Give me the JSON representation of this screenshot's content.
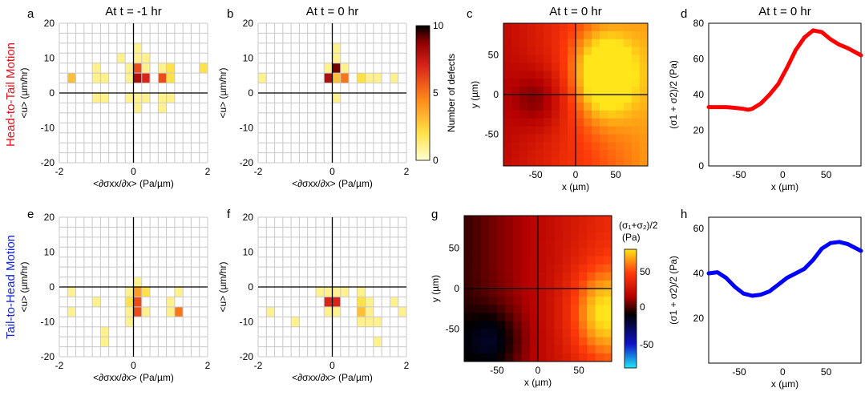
{
  "row_labels": {
    "top": {
      "text": "Head-to-Tail Motion",
      "color": "#e8101a"
    },
    "bottom": {
      "text": "Tail-to-Head Motion",
      "color": "#1426e6"
    }
  },
  "colors": {
    "defect_scale": [
      "#ffffd2",
      "#ffe24a",
      "#ff8a1a",
      "#d9241a",
      "#8a0000",
      "#000000"
    ],
    "stress_scale": [
      "#20e8f5",
      "#1014c8",
      "#000000",
      "#b40000",
      "#ff3a0a",
      "#ffe51a"
    ],
    "top_line": "#ff0000",
    "bottom_line": "#0000ff"
  },
  "colorbars": {
    "defects": {
      "label": "Number of defects",
      "ticks": [
        "0",
        "5",
        "10"
      ]
    },
    "stress": {
      "label_line1": "(σ₁+σ₂)/2",
      "label_line2": "(Pa)",
      "ticks": [
        "50",
        "0",
        "-50"
      ]
    }
  },
  "chart_data": [
    {
      "panel": "a",
      "type": "heatmap",
      "title": "At t = -1 hr",
      "xlabel": "<∂σxx/∂x>  (Pa/µm)",
      "ylabel": "<u> (µm/hr)",
      "xlim": [
        -2,
        2
      ],
      "ylim": [
        -20,
        20
      ],
      "xticks": [
        "-2",
        "0",
        "2"
      ],
      "yticks": [
        "20",
        "10",
        "0",
        "-10",
        "-20"
      ],
      "bin_width": 0.2222,
      "bin_height": 2.8571,
      "cells": [
        {
          "x": 0.0,
          "y": 11.5,
          "count": 1
        },
        {
          "x": -0.44,
          "y": 8.7,
          "count": 1
        },
        {
          "x": 0.22,
          "y": 8.7,
          "count": 1
        },
        {
          "x": 0.44,
          "y": 8.7,
          "count": 1
        },
        {
          "x": -1.11,
          "y": 5.8,
          "count": 1
        },
        {
          "x": -0.22,
          "y": 5.8,
          "count": 1
        },
        {
          "x": 0.0,
          "y": 5.8,
          "count": 1
        },
        {
          "x": 0.22,
          "y": 5.8,
          "count": 6
        },
        {
          "x": 0.44,
          "y": 5.8,
          "count": 1
        },
        {
          "x": 0.67,
          "y": 5.8,
          "count": 1
        },
        {
          "x": 1.11,
          "y": 5.8,
          "count": 2
        },
        {
          "x": 1.78,
          "y": 5.8,
          "count": 2
        },
        {
          "x": -1.56,
          "y": 2.9,
          "count": 3
        },
        {
          "x": -1.11,
          "y": 2.9,
          "count": 1
        },
        {
          "x": -0.67,
          "y": 2.9,
          "count": 1
        },
        {
          "x": -0.22,
          "y": 2.9,
          "count": 1
        },
        {
          "x": 0.0,
          "y": 2.9,
          "count": 2
        },
        {
          "x": 0.22,
          "y": 2.9,
          "count": 8
        },
        {
          "x": 0.44,
          "y": 2.9,
          "count": 7
        },
        {
          "x": 0.67,
          "y": 2.9,
          "count": 6
        },
        {
          "x": 1.11,
          "y": 2.9,
          "count": 2
        },
        {
          "x": -1.11,
          "y": -1.4,
          "count": 1
        },
        {
          "x": -0.67,
          "y": -1.4,
          "count": 1
        },
        {
          "x": -0.22,
          "y": -1.4,
          "count": 1
        },
        {
          "x": 0.0,
          "y": -1.4,
          "count": 1
        },
        {
          "x": 0.22,
          "y": -1.4,
          "count": 1
        },
        {
          "x": 0.44,
          "y": -1.4,
          "count": 1
        },
        {
          "x": 0.67,
          "y": -1.4,
          "count": 1
        },
        {
          "x": 0.89,
          "y": -1.4,
          "count": 1
        },
        {
          "x": 0.0,
          "y": -4.3,
          "count": 1
        },
        {
          "x": 0.22,
          "y": -4.3,
          "count": 1
        },
        {
          "x": 0.67,
          "y": -4.3,
          "count": 1
        }
      ]
    },
    {
      "panel": "b",
      "type": "heatmap",
      "title": "At t = 0 hr",
      "xlabel": "<∂σxx/∂x>  (Pa/µm)",
      "ylabel": "<u> (µm/hr)",
      "xlim": [
        -2,
        2
      ],
      "ylim": [
        -20,
        20
      ],
      "xticks": [
        "-2",
        "0",
        "2"
      ],
      "yticks": [
        "20",
        "10",
        "0",
        "-10",
        "-20"
      ],
      "bin_width": 0.2222,
      "bin_height": 2.8571,
      "cells": [
        {
          "x": 0.0,
          "y": 11.5,
          "count": 1
        },
        {
          "x": 0.0,
          "y": 8.7,
          "count": 1
        },
        {
          "x": -0.22,
          "y": 5.8,
          "count": 1
        },
        {
          "x": 0.0,
          "y": 5.8,
          "count": 2
        },
        {
          "x": 0.22,
          "y": 5.8,
          "count": 9
        },
        {
          "x": 0.44,
          "y": 5.8,
          "count": 1
        },
        {
          "x": -1.78,
          "y": 2.9,
          "count": 1
        },
        {
          "x": -0.22,
          "y": 2.9,
          "count": 8
        },
        {
          "x": 0.0,
          "y": 2.9,
          "count": 2
        },
        {
          "x": 0.22,
          "y": 2.9,
          "count": 3
        },
        {
          "x": 0.44,
          "y": 2.9,
          "count": 5
        },
        {
          "x": 0.67,
          "y": 2.9,
          "count": 2
        },
        {
          "x": 0.89,
          "y": 2.9,
          "count": 1
        },
        {
          "x": 1.11,
          "y": 2.9,
          "count": 1
        },
        {
          "x": 1.33,
          "y": 2.9,
          "count": 1
        },
        {
          "x": 1.56,
          "y": 2.9,
          "count": 1
        },
        {
          "x": 0.22,
          "y": -1.4,
          "count": 1
        }
      ]
    },
    {
      "panel": "c",
      "type": "heatmap",
      "title": "At t = 0 hr",
      "xlabel": "x (µm)",
      "ylabel": "y (µm)",
      "xlim": [
        -90,
        90
      ],
      "ylim": [
        -90,
        90
      ],
      "xticks": [
        "-50",
        "0",
        "50"
      ],
      "yticks": [
        "50",
        "0",
        "-50"
      ],
      "grid_size": 18,
      "value_description": "(σ1+σ2)/2 (Pa); low (dark red) on left, high (yellow) on right",
      "field": {
        "left_min": 20,
        "right_max": 75,
        "hotspot_x": 35,
        "hotspot_y": 25,
        "cold_x": -45,
        "cold_y": -5
      }
    },
    {
      "panel": "d",
      "type": "line",
      "title": "At t = 0 hr",
      "xlabel": "x (µm)",
      "ylabel": "(σ1 + σ2)/2  (Pa)",
      "xlim": [
        -85,
        90
      ],
      "ylim": [
        0,
        80
      ],
      "xticks": [
        "-50",
        "0",
        "50"
      ],
      "yticks": [
        "80",
        "60",
        "40",
        "20",
        "0"
      ],
      "x": [
        -85,
        -75,
        -65,
        -55,
        -45,
        -40,
        -35,
        -25,
        -15,
        -5,
        5,
        15,
        25,
        35,
        45,
        55,
        65,
        75,
        90
      ],
      "y": [
        33,
        33,
        33,
        32.6,
        32,
        31.5,
        32,
        35,
        40,
        46,
        55,
        65,
        72,
        76,
        75,
        71,
        68,
        66,
        62
      ]
    },
    {
      "panel": "e",
      "type": "heatmap",
      "title": "",
      "xlabel": "<∂σxx/∂x>  (Pa/µm)",
      "ylabel": "<u> (µm/hr)",
      "xlim": [
        -2,
        2
      ],
      "ylim": [
        -20,
        20
      ],
      "xticks": [
        "-2",
        "0",
        "2"
      ],
      "yticks": [
        "20",
        "10",
        "0",
        "-10",
        "-20"
      ],
      "bin_width": 0.2222,
      "bin_height": 2.8571,
      "cells": [
        {
          "x": 0.0,
          "y": 1.4,
          "count": 1
        },
        {
          "x": -1.56,
          "y": -1.4,
          "count": 1
        },
        {
          "x": -0.22,
          "y": -1.4,
          "count": 1
        },
        {
          "x": 0.0,
          "y": -1.4,
          "count": 2
        },
        {
          "x": 0.22,
          "y": -1.4,
          "count": 4
        },
        {
          "x": 0.44,
          "y": -1.4,
          "count": 2
        },
        {
          "x": 1.33,
          "y": -1.4,
          "count": 1
        },
        {
          "x": -1.11,
          "y": -4.3,
          "count": 1
        },
        {
          "x": -0.22,
          "y": -4.3,
          "count": 2
        },
        {
          "x": 0.0,
          "y": -4.3,
          "count": 3
        },
        {
          "x": 0.22,
          "y": -4.3,
          "count": 6
        },
        {
          "x": 0.89,
          "y": -4.3,
          "count": 1
        },
        {
          "x": 1.11,
          "y": -4.3,
          "count": 1
        },
        {
          "x": -1.56,
          "y": -7.1,
          "count": 1
        },
        {
          "x": -0.22,
          "y": -7.1,
          "count": 1
        },
        {
          "x": 0.0,
          "y": -7.1,
          "count": 3
        },
        {
          "x": 0.22,
          "y": -7.1,
          "count": 6
        },
        {
          "x": 0.44,
          "y": -7.1,
          "count": 1
        },
        {
          "x": 1.11,
          "y": -7.1,
          "count": 1
        },
        {
          "x": 1.33,
          "y": -7.1,
          "count": 5
        },
        {
          "x": -0.22,
          "y": -10.0,
          "count": 1
        },
        {
          "x": -0.67,
          "y": -12.9,
          "count": 1
        },
        {
          "x": -0.67,
          "y": -15.7,
          "count": 1
        }
      ]
    },
    {
      "panel": "f",
      "type": "heatmap",
      "title": "",
      "xlabel": "<∂σxx/∂x>  (Pa/µm)",
      "ylabel": "<u> (µm/hr)",
      "xlim": [
        -2,
        2
      ],
      "ylim": [
        -20,
        20
      ],
      "xticks": [
        "-2",
        "0",
        "2"
      ],
      "yticks": [
        "20",
        "10",
        "0",
        "-10",
        "-20"
      ],
      "bin_width": 0.2222,
      "bin_height": 2.8571,
      "cells": [
        {
          "x": -0.44,
          "y": -1.4,
          "count": 1
        },
        {
          "x": -0.22,
          "y": -1.4,
          "count": 1
        },
        {
          "x": 0.0,
          "y": -1.4,
          "count": 1
        },
        {
          "x": 0.22,
          "y": -1.4,
          "count": 1
        },
        {
          "x": 0.44,
          "y": -1.4,
          "count": 1
        },
        {
          "x": 0.67,
          "y": -1.4,
          "count": 1
        },
        {
          "x": -0.22,
          "y": -4.3,
          "count": 7
        },
        {
          "x": 0.0,
          "y": -4.3,
          "count": 7
        },
        {
          "x": 0.22,
          "y": -4.3,
          "count": 7
        },
        {
          "x": 0.67,
          "y": -4.3,
          "count": 2
        },
        {
          "x": 0.89,
          "y": -4.3,
          "count": 1
        },
        {
          "x": 1.56,
          "y": -4.3,
          "count": 1
        },
        {
          "x": -1.56,
          "y": -7.1,
          "count": 1
        },
        {
          "x": -0.22,
          "y": -7.1,
          "count": 1
        },
        {
          "x": 0.22,
          "y": -7.1,
          "count": 1
        },
        {
          "x": 0.67,
          "y": -7.1,
          "count": 3
        },
        {
          "x": 1.11,
          "y": -7.1,
          "count": 1
        },
        {
          "x": 1.78,
          "y": -7.1,
          "count": 1
        },
        {
          "x": -1.11,
          "y": -10.0,
          "count": 1
        },
        {
          "x": 0.67,
          "y": -10.0,
          "count": 1
        },
        {
          "x": 0.89,
          "y": -10.0,
          "count": 1
        },
        {
          "x": 1.33,
          "y": -10.0,
          "count": 1
        },
        {
          "x": 1.33,
          "y": -15.7,
          "count": 1
        }
      ]
    },
    {
      "panel": "g",
      "type": "heatmap",
      "title": "",
      "xlabel": "x (µm)",
      "ylabel": "y (µm)",
      "xlim": [
        -90,
        90
      ],
      "ylim": [
        -90,
        90
      ],
      "xticks": [
        "-50",
        "0",
        "50"
      ],
      "yticks": [
        "50",
        "0",
        "-50"
      ],
      "grid_size": 18,
      "value_description": "(σ1+σ2)/2 (Pa); dark on lower-left, brighter on right",
      "field": {
        "left_min": 5,
        "right_max": 55,
        "hotspot_x": 80,
        "hotspot_y": -30,
        "cold_x": -55,
        "cold_y": -65
      }
    },
    {
      "panel": "h",
      "type": "line",
      "title": "",
      "xlabel": "x (µm)",
      "ylabel": "(σ1 + σ2)/2  (Pa)",
      "xlim": [
        -85,
        90
      ],
      "ylim": [
        0,
        65
      ],
      "xticks": [
        "-50",
        "0",
        "50"
      ],
      "yticks": [
        "60",
        "40",
        "20"
      ],
      "x": [
        -85,
        -75,
        -65,
        -55,
        -45,
        -35,
        -25,
        -15,
        -5,
        5,
        15,
        25,
        35,
        45,
        55,
        65,
        75,
        90
      ],
      "y": [
        40,
        40.5,
        38,
        34,
        31,
        30,
        30.5,
        32,
        35,
        38,
        40,
        42,
        46,
        51,
        53.5,
        54,
        53,
        50
      ]
    }
  ],
  "panel_letters": [
    "a",
    "b",
    "c",
    "d",
    "e",
    "f",
    "g",
    "h"
  ]
}
